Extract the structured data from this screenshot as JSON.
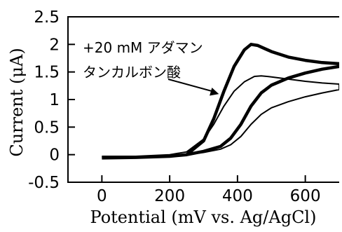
{
  "chart_data": {
    "type": "line",
    "title": "",
    "xlabel": "Potential (mV vs. Ag/AgCl)",
    "ylabel": "Current (μA)",
    "xlim": [
      -100,
      700
    ],
    "ylim": [
      -0.5,
      2.5
    ],
    "x_ticks": [
      0,
      200,
      400,
      600
    ],
    "x_tick_labels": [
      "0",
      "200",
      "400",
      "600"
    ],
    "y_ticks": [
      -0.5,
      0,
      0.5,
      1,
      1.5,
      2,
      2.5
    ],
    "y_tick_labels": [
      "-0.5",
      "0",
      "0.5",
      "1",
      "1.5",
      "2",
      "2.5"
    ],
    "annotation": {
      "lines": [
        "+20 mM アダマン",
        "タンカルボン酸"
      ],
      "arrow_to": [
        345,
        1.1
      ]
    },
    "series": [
      {
        "style": "thick",
        "forward": [
          [
            0,
            -0.05
          ],
          [
            100,
            -0.05
          ],
          [
            200,
            -0.03
          ],
          [
            250,
            0.0
          ],
          [
            300,
            0.25
          ],
          [
            330,
            0.65
          ],
          [
            360,
            1.15
          ],
          [
            390,
            1.6
          ],
          [
            420,
            1.9
          ],
          [
            440,
            2.0
          ],
          [
            460,
            1.98
          ],
          [
            500,
            1.87
          ],
          [
            550,
            1.77
          ],
          [
            600,
            1.71
          ],
          [
            650,
            1.67
          ],
          [
            700,
            1.65
          ]
        ],
        "reverse": [
          [
            700,
            1.6
          ],
          [
            650,
            1.55
          ],
          [
            600,
            1.48
          ],
          [
            550,
            1.39
          ],
          [
            500,
            1.26
          ],
          [
            470,
            1.12
          ],
          [
            440,
            0.88
          ],
          [
            410,
            0.55
          ],
          [
            380,
            0.3
          ],
          [
            350,
            0.15
          ],
          [
            300,
            0.06
          ],
          [
            250,
            0.0
          ],
          [
            200,
            -0.03
          ],
          [
            100,
            -0.05
          ],
          [
            0,
            -0.06
          ]
        ]
      },
      {
        "style": "thin",
        "forward": [
          [
            0,
            -0.03
          ],
          [
            100,
            -0.03
          ],
          [
            200,
            0.0
          ],
          [
            250,
            0.05
          ],
          [
            300,
            0.28
          ],
          [
            330,
            0.55
          ],
          [
            360,
            0.88
          ],
          [
            390,
            1.15
          ],
          [
            420,
            1.32
          ],
          [
            450,
            1.42
          ],
          [
            470,
            1.43
          ],
          [
            500,
            1.41
          ],
          [
            550,
            1.37
          ],
          [
            600,
            1.33
          ],
          [
            650,
            1.3
          ],
          [
            700,
            1.28
          ]
        ],
        "reverse": [
          [
            700,
            1.18
          ],
          [
            650,
            1.12
          ],
          [
            600,
            1.05
          ],
          [
            550,
            0.96
          ],
          [
            500,
            0.85
          ],
          [
            470,
            0.73
          ],
          [
            440,
            0.55
          ],
          [
            410,
            0.33
          ],
          [
            380,
            0.18
          ],
          [
            350,
            0.1
          ],
          [
            300,
            0.04
          ],
          [
            250,
            0.0
          ],
          [
            200,
            -0.02
          ],
          [
            100,
            -0.04
          ],
          [
            0,
            -0.05
          ]
        ]
      }
    ]
  }
}
